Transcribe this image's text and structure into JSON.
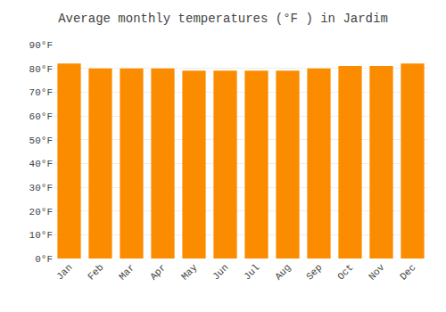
{
  "chart_data": {
    "type": "bar",
    "title": "Average monthly temperatures (°F ) in Jardim",
    "categories": [
      "Jan",
      "Feb",
      "Mar",
      "Apr",
      "May",
      "Jun",
      "Jul",
      "Aug",
      "Sep",
      "Oct",
      "Nov",
      "Dec"
    ],
    "values": [
      82,
      80,
      80,
      80,
      79,
      79,
      79,
      79,
      80,
      81,
      81,
      82
    ],
    "color": "#FB8C00",
    "ylim": [
      0,
      90
    ],
    "yticks": [
      {
        "value": 0,
        "label": "0°F"
      },
      {
        "value": 10,
        "label": "10°F"
      },
      {
        "value": 20,
        "label": "20°F"
      },
      {
        "value": 30,
        "label": "30°F"
      },
      {
        "value": 40,
        "label": "40°F"
      },
      {
        "value": 50,
        "label": "50°F"
      },
      {
        "value": 60,
        "label": "60°F"
      },
      {
        "value": 70,
        "label": "70°F"
      },
      {
        "value": 80,
        "label": "80°F"
      },
      {
        "value": 90,
        "label": "90°F"
      }
    ],
    "grid": true
  }
}
